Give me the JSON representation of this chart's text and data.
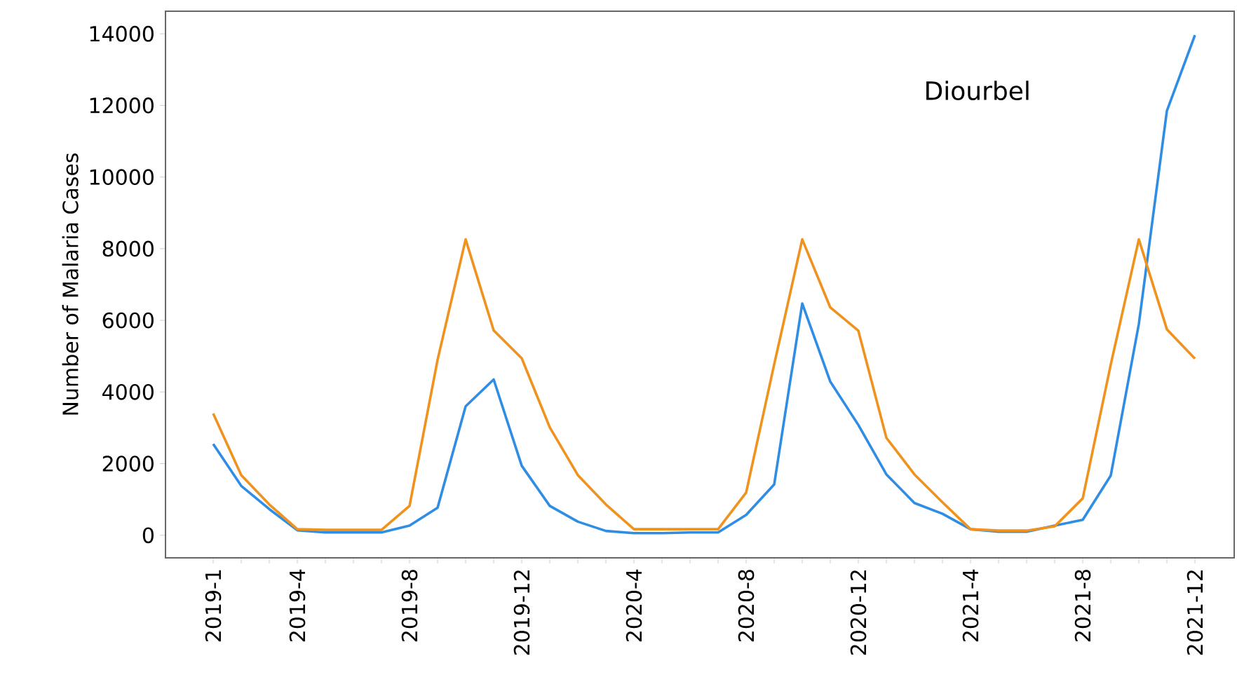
{
  "chart_data": {
    "type": "line",
    "ylabel": "Number of Malaria Cases",
    "annotations": [
      "Diourbel"
    ],
    "categories": [
      "2019-1",
      null,
      null,
      "2019-4",
      null,
      null,
      null,
      "2019-8",
      null,
      null,
      null,
      "2019-12",
      null,
      null,
      null,
      "2020-4",
      null,
      null,
      null,
      "2020-8",
      null,
      null,
      null,
      "2020-12",
      null,
      null,
      null,
      "2021-4",
      null,
      null,
      null,
      "2021-8",
      null,
      null,
      null,
      "2021-12"
    ],
    "series": [
      {
        "color": "#2f8de4",
        "values": [
          2550,
          1380,
          730,
          140,
          80,
          80,
          80,
          270,
          770,
          3600,
          4350,
          1940,
          820,
          380,
          120,
          60,
          60,
          80,
          80,
          570,
          1420,
          6470,
          4290,
          3080,
          1700,
          900,
          600,
          170,
          100,
          100,
          270,
          430,
          1670,
          5900,
          11850,
          13960
        ]
      },
      {
        "color": "#f0921e",
        "values": [
          3400,
          1680,
          860,
          170,
          150,
          150,
          150,
          820,
          4900,
          8260,
          5720,
          4940,
          3010,
          1680,
          860,
          170,
          170,
          170,
          170,
          1190,
          4770,
          8260,
          6360,
          5710,
          2720,
          1700,
          920,
          170,
          130,
          130,
          250,
          1030,
          4770,
          8260,
          5750,
          4930
        ]
      }
    ],
    "ylim": [
      -630,
      14630
    ],
    "yticks": [
      0,
      2000,
      4000,
      6000,
      8000,
      10000,
      12000,
      14000
    ],
    "line_style": "solid",
    "marker": "none"
  }
}
